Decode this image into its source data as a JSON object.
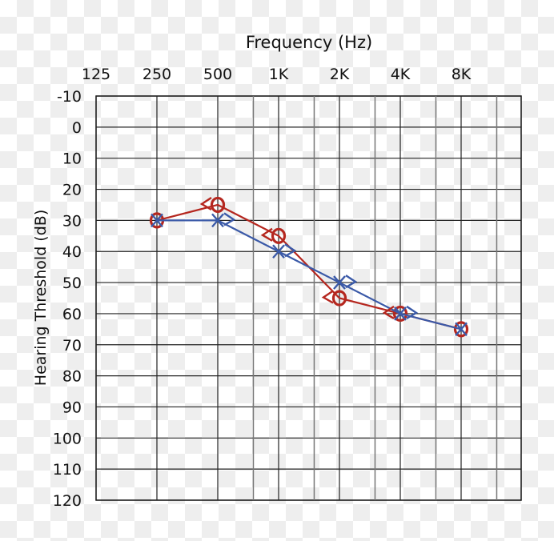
{
  "chart_data": {
    "type": "line",
    "title": "",
    "xlabel": "Frequency (Hz)",
    "ylabel": "Hearing Threshold (dB)",
    "x_tick_labels": [
      "125",
      "250",
      "500",
      "1K",
      "2K",
      "4K",
      "8K"
    ],
    "x_values_hz": [
      125,
      250,
      500,
      1000,
      2000,
      4000,
      8000
    ],
    "x_scale": "log2",
    "y_tick_labels": [
      "-10",
      "0",
      "10",
      "20",
      "30",
      "40",
      "50",
      "60",
      "70",
      "80",
      "90",
      "100",
      "110",
      "120"
    ],
    "ylim": [
      -10,
      120
    ],
    "y_inverted": true,
    "grid": true,
    "series": [
      {
        "marker": "O",
        "color": "#b5271f",
        "connected": true,
        "x": [
          250,
          500,
          1000,
          2000,
          4000,
          8000
        ],
        "y": [
          30,
          25,
          35,
          55,
          60,
          65
        ]
      },
      {
        "marker": "X",
        "color": "#3b5aa8",
        "connected": true,
        "x": [
          250,
          500,
          1000,
          2000,
          4000,
          8000
        ],
        "y": [
          30,
          30,
          40,
          50,
          60,
          65
        ]
      },
      {
        "marker": "<",
        "color": "#b5271f",
        "connected": false,
        "x": [
          500,
          1000,
          2000,
          4000
        ],
        "y": [
          25,
          35,
          55,
          60
        ]
      },
      {
        "marker": ">",
        "color": "#3b5aa8",
        "connected": false,
        "x": [
          500,
          1000,
          2000,
          4000
        ],
        "y": [
          30,
          40,
          50,
          60
        ]
      }
    ]
  }
}
